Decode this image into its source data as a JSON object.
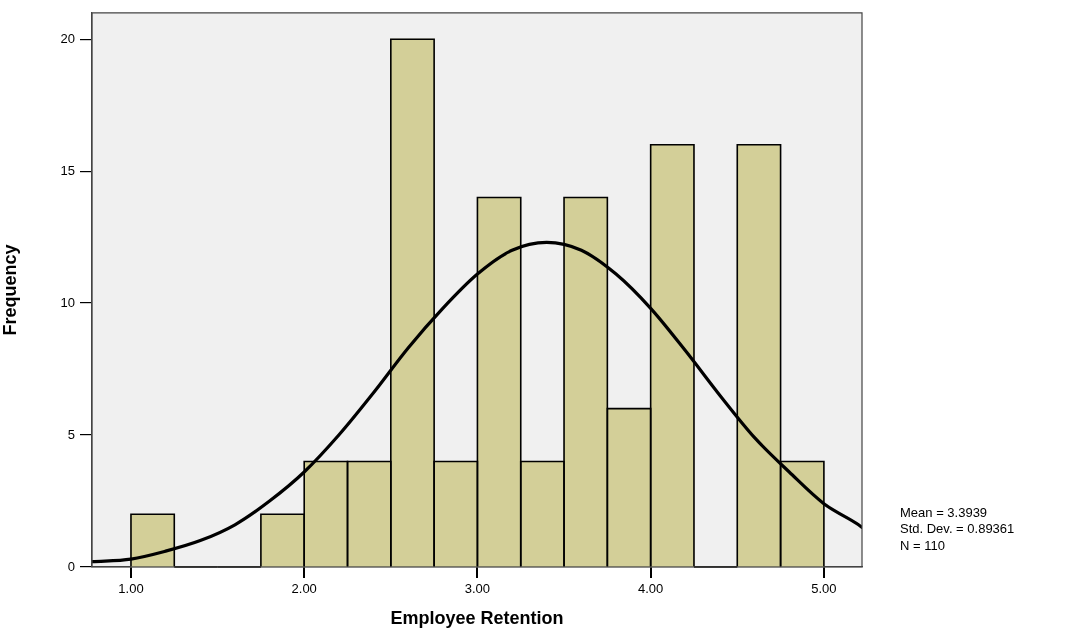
{
  "chart_data": {
    "type": "histogram",
    "xlabel": "Employee Retention",
    "ylabel": "Frequency",
    "annotations": [
      "Mean = 3.3939",
      "Std. Dev. = 0.89361",
      "N = 110"
    ],
    "series": [
      {
        "type": "histogram",
        "bins": [
          1,
          1.25,
          1.5,
          1.75,
          2,
          2.25,
          2.5,
          2.75,
          3,
          3.25,
          3.5,
          3.75,
          4,
          4.25,
          4.5,
          4.75,
          5
        ],
        "values": [
          2,
          0,
          0,
          2,
          4,
          4,
          20,
          4,
          14,
          4,
          14,
          6,
          16,
          0,
          16,
          4
        ],
        "color": "#d3cf98"
      },
      {
        "type": "line",
        "x": [
          0.775,
          1,
          1.2,
          1.4,
          1.6,
          1.8,
          2,
          2.2,
          2.4,
          2.6,
          2.8,
          3,
          3.2,
          3.4,
          3.6,
          3.8,
          4,
          4.2,
          4.4,
          4.6,
          4.8,
          5,
          5.2,
          5.22
        ],
        "values": [
          0.2,
          0.3,
          0.6,
          1,
          1.6,
          2.5,
          3.6,
          5,
          6.6,
          8.3,
          9.8,
          11.1,
          12,
          12.3,
          12,
          11.1,
          9.8,
          8.2,
          6.5,
          4.9,
          3.6,
          2.4,
          1.6,
          1.5
        ],
        "color": "#000000",
        "marker": "none"
      }
    ],
    "xlim": [
      0.775,
      5.22
    ],
    "ylim": [
      0,
      21
    ],
    "xticks": [
      {
        "value": 1,
        "label": "1.00"
      },
      {
        "value": 2,
        "label": "2.00"
      },
      {
        "value": 3,
        "label": "3.00"
      },
      {
        "value": 4,
        "label": "4.00"
      },
      {
        "value": 5,
        "label": "5.00"
      }
    ],
    "yticks": [
      0,
      5,
      10,
      15,
      20
    ],
    "grid": false,
    "legend": false
  }
}
